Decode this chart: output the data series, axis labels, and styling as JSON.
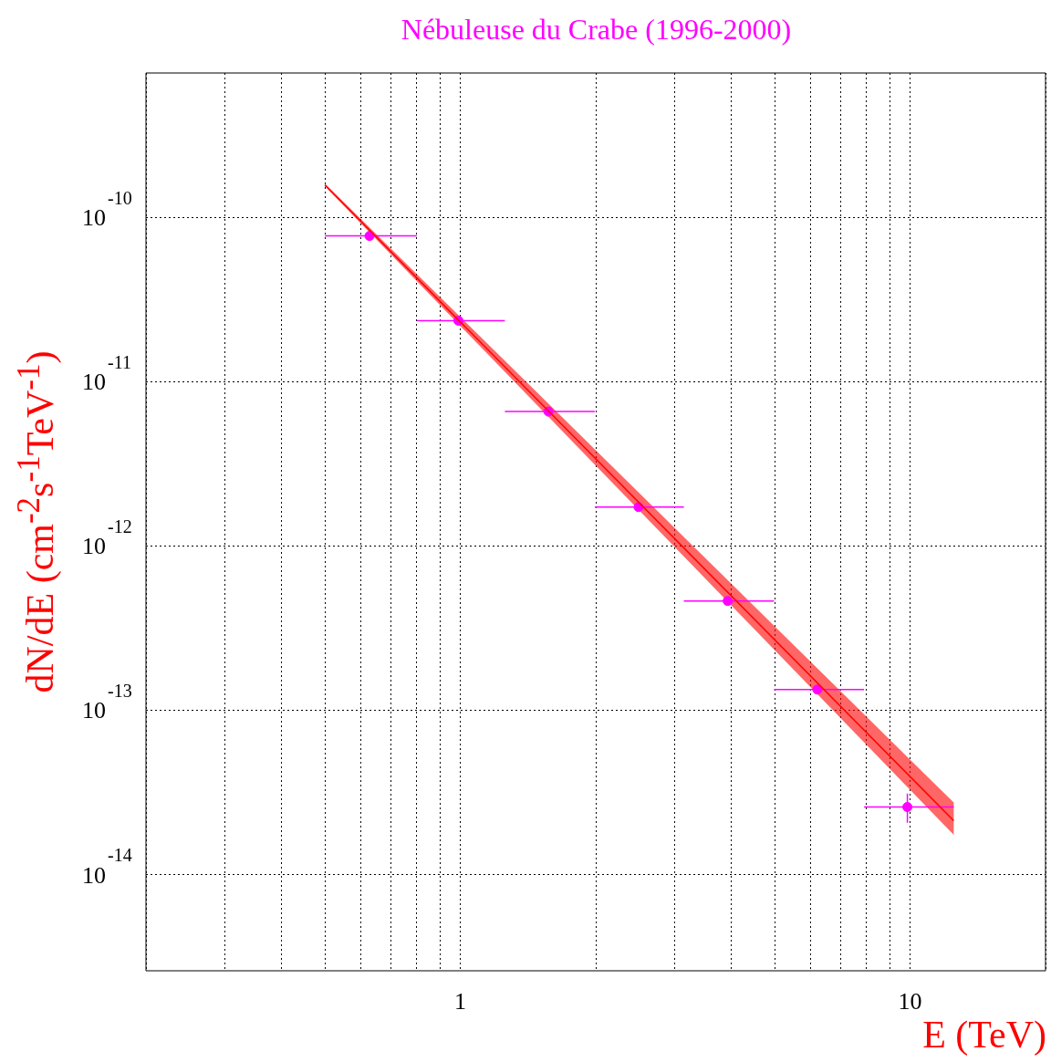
{
  "chart_data": {
    "type": "scatter",
    "title": "Nébuleuse du Crabe (1996-2000)",
    "xlabel": "E (TeV)",
    "ylabel": "dN/dE (cm$^{-2}$s$^{-1}$TeV$^{-1}$)",
    "log": "xy",
    "xlim": [
      0.2,
      20
    ],
    "ylim": [
      2.6e-15,
      7.6e-10
    ],
    "xticks": [
      {
        "value": 0.2,
        "label": null
      },
      {
        "value": 0.3,
        "label": null
      },
      {
        "value": 0.4,
        "label": null
      },
      {
        "value": 0.5,
        "label": null
      },
      {
        "value": 0.6,
        "label": null
      },
      {
        "value": 0.7,
        "label": null
      },
      {
        "value": 0.8,
        "label": null
      },
      {
        "value": 0.9,
        "label": null
      },
      1,
      {
        "value": 2,
        "label": null
      },
      {
        "value": 3,
        "label": null
      },
      {
        "value": 4,
        "label": null
      },
      {
        "value": 5,
        "label": null
      },
      {
        "value": 6,
        "label": null
      },
      {
        "value": 7,
        "label": null
      },
      {
        "value": 8,
        "label": null
      },
      {
        "value": 9,
        "label": null
      },
      10,
      {
        "value": 20,
        "label": null
      }
    ],
    "yticks": [
      {
        "value": 1e-14,
        "label": "10$^{-14}$"
      },
      {
        "value": 1e-13,
        "label": "10$^{-13}$"
      },
      {
        "value": 1e-12,
        "label": "10$^{-12}$"
      },
      {
        "value": 1e-11,
        "label": "10$^{-11}$"
      },
      {
        "value": 1e-10,
        "label": "10$^{-10}$"
      }
    ],
    "grid": true,
    "legend": false,
    "marker": "circle",
    "series": [
      {
        "type": "line",
        "marker": "none",
        "color": "#ff0000",
        "x": [
          0.5,
          12.5
        ],
        "values": [
          1.58e-10,
          2.13e-14
        ],
        "lower": [
          1.55e-10,
          1.75e-14
        ],
        "upper": [
          1.61e-10,
          2.75e-14
        ]
      },
      {
        "type": "scatter",
        "color": "#ff00ff",
        "x": [
          0.628,
          0.99,
          1.57,
          2.49,
          3.93,
          6.22,
          9.86
        ],
        "values": [
          7.74e-11,
          2.36e-11,
          6.6e-12,
          1.73e-12,
          4.64e-13,
          1.34e-13,
          2.58e-14
        ],
        "xerrors": [
          [
            0.5,
            0.8
          ],
          [
            0.8,
            1.256
          ],
          [
            1.256,
            1.99
          ],
          [
            1.99,
            3.14
          ],
          [
            3.14,
            4.98
          ],
          [
            4.98,
            7.9
          ],
          [
            7.9,
            12.5
          ]
        ],
        "errors": [
          null,
          null,
          null,
          null,
          null,
          null,
          [
            2.07e-14,
            3.12e-14
          ]
        ]
      }
    ]
  }
}
